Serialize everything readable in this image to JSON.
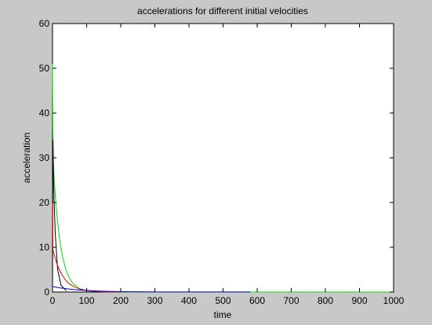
{
  "window": {
    "background": "#c8c8c8"
  },
  "chart_data": {
    "type": "line",
    "title": "accelerations for different initial velocities",
    "xlabel": "time",
    "ylabel": "acceleration",
    "xlim": [
      0,
      1000
    ],
    "ylim": [
      0,
      60
    ],
    "xticks": [
      0,
      100,
      200,
      300,
      400,
      500,
      600,
      700,
      800,
      900,
      1000
    ],
    "yticks": [
      0,
      10,
      20,
      30,
      40,
      50,
      60
    ],
    "grid": false,
    "legend": "none",
    "series": [
      {
        "color": "#00e000",
        "x": [
          0,
          1,
          3,
          5,
          10,
          15,
          20,
          25,
          30,
          40,
          50,
          60,
          80,
          100,
          150,
          200,
          300,
          400,
          500,
          600,
          700,
          800,
          900,
          1000
        ],
        "values": [
          51,
          36,
          28,
          25,
          19.8,
          15.6,
          12.3,
          9.8,
          7.7,
          4.8,
          3.0,
          1.9,
          0.75,
          0.3,
          0.06,
          0.02,
          0.01,
          0.01,
          0.01,
          0.01,
          0.01,
          0.01,
          0.01,
          0.01
        ]
      },
      {
        "color": "#000000",
        "x": [
          0,
          1,
          2,
          4,
          8,
          15,
          25,
          40
        ],
        "values": [
          0,
          34,
          29,
          22,
          13,
          5,
          1.5,
          0.3
        ]
      },
      {
        "color": "#e00000",
        "x": [
          0,
          1,
          3,
          6,
          10,
          15,
          20,
          30,
          40,
          50,
          60,
          80,
          100,
          120,
          150,
          200
        ],
        "values": [
          20,
          9.5,
          8.8,
          8.0,
          7.0,
          5.9,
          5.0,
          3.6,
          2.5,
          1.8,
          1.3,
          0.65,
          0.33,
          0.17,
          0.06,
          0.02
        ]
      },
      {
        "color": "#0000e0",
        "x": [
          0,
          10,
          20,
          40,
          60,
          80,
          100,
          120,
          150,
          200,
          300,
          400,
          500,
          580
        ],
        "values": [
          1.2,
          1.1,
          0.95,
          0.75,
          0.58,
          0.45,
          0.35,
          0.27,
          0.18,
          0.09,
          0.03,
          0.02,
          0.02,
          0.02
        ]
      }
    ]
  }
}
